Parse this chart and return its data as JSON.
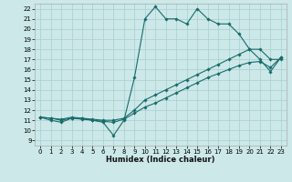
{
  "xlabel": "Humidex (Indice chaleur)",
  "bg_color": "#cce8e8",
  "grid_color": "#a8cece",
  "line_color": "#1a6b6b",
  "xlim": [
    -0.5,
    23.5
  ],
  "ylim": [
    8.5,
    22.5
  ],
  "xticks": [
    0,
    1,
    2,
    3,
    4,
    5,
    6,
    7,
    8,
    9,
    10,
    11,
    12,
    13,
    14,
    15,
    16,
    17,
    18,
    19,
    20,
    21,
    22,
    23
  ],
  "yticks": [
    9,
    10,
    11,
    12,
    13,
    14,
    15,
    16,
    17,
    18,
    19,
    20,
    21,
    22
  ],
  "line1_x": [
    0,
    1,
    2,
    3,
    4,
    5,
    6,
    7,
    8,
    9,
    10,
    11,
    12,
    13,
    14,
    15,
    16,
    17,
    18,
    19,
    20,
    21,
    22,
    23
  ],
  "line1_y": [
    11.3,
    11.0,
    10.8,
    11.2,
    11.2,
    11.0,
    10.8,
    9.5,
    11.0,
    15.2,
    21.0,
    22.2,
    21.0,
    21.0,
    20.5,
    22.0,
    21.0,
    20.5,
    20.5,
    19.5,
    18.0,
    17.0,
    15.8,
    17.2
  ],
  "line2_x": [
    0,
    1,
    2,
    3,
    4,
    5,
    6,
    7,
    8,
    9,
    10,
    11,
    12,
    13,
    14,
    15,
    16,
    17,
    18,
    19,
    20,
    21,
    22,
    23
  ],
  "line2_y": [
    11.3,
    11.2,
    11.1,
    11.3,
    11.2,
    11.1,
    11.0,
    11.0,
    11.2,
    12.0,
    13.0,
    13.5,
    14.0,
    14.5,
    15.0,
    15.5,
    16.0,
    16.5,
    17.0,
    17.5,
    18.0,
    18.0,
    17.0,
    17.0
  ],
  "line3_x": [
    0,
    1,
    2,
    3,
    4,
    5,
    6,
    7,
    8,
    9,
    10,
    11,
    12,
    13,
    14,
    15,
    16,
    17,
    18,
    19,
    20,
    21,
    22,
    23
  ],
  "line3_y": [
    11.3,
    11.2,
    11.0,
    11.2,
    11.1,
    11.0,
    10.9,
    10.8,
    11.1,
    11.7,
    12.3,
    12.7,
    13.2,
    13.7,
    14.2,
    14.7,
    15.2,
    15.6,
    16.0,
    16.4,
    16.7,
    16.8,
    16.2,
    17.2
  ]
}
